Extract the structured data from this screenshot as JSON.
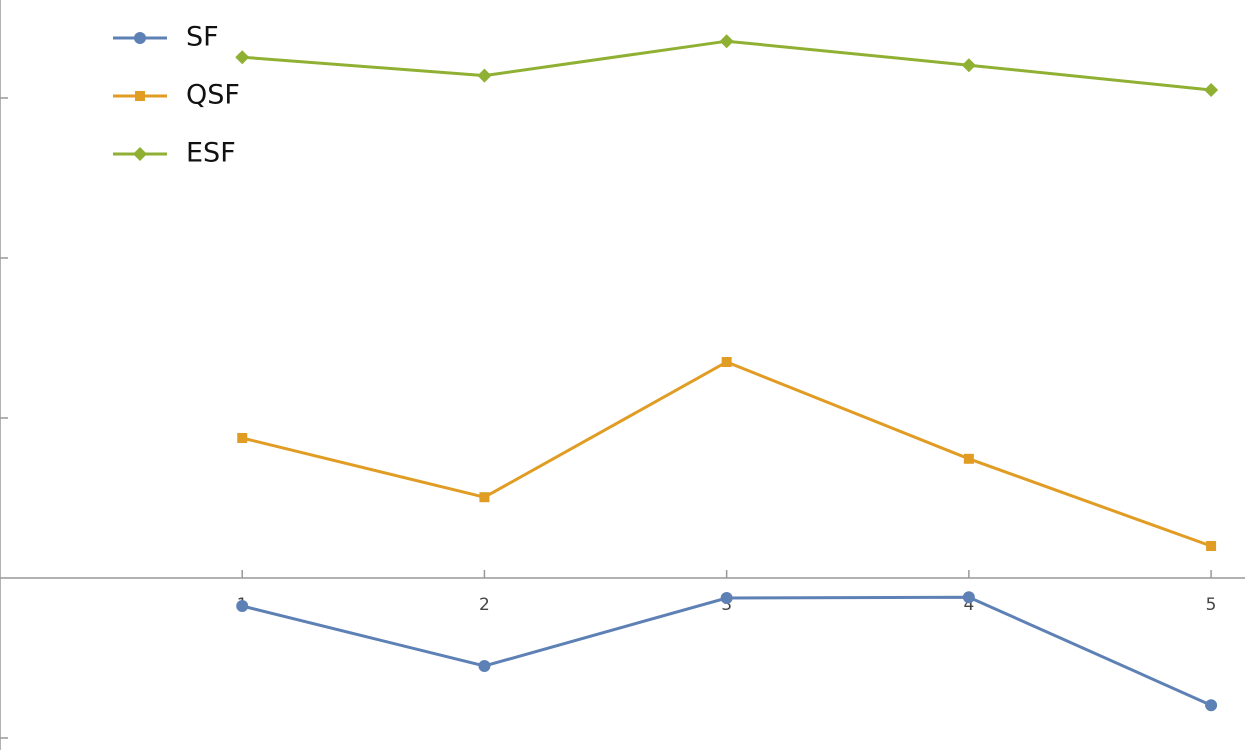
{
  "chart_data": {
    "type": "line",
    "x": [
      1,
      2,
      3,
      4,
      5
    ],
    "series": [
      {
        "name": "SF",
        "color": "#5e81b5",
        "marker": "circle",
        "values": [
          -0.035,
          -0.11,
          -0.025,
          -0.024,
          -0.159
        ]
      },
      {
        "name": "QSF",
        "color": "#e19c24",
        "marker": "square",
        "values": [
          0.175,
          0.101,
          0.27,
          0.149,
          0.04
        ]
      },
      {
        "name": "ESF",
        "color": "#8fb032",
        "marker": "diamond",
        "values": [
          0.651,
          0.628,
          0.671,
          0.641,
          0.61
        ]
      }
    ],
    "xlim": [
      0,
      5.14
    ],
    "ylim": [
      -0.215,
      0.7225
    ],
    "xticks": [
      1,
      2,
      3,
      4,
      5
    ],
    "yticks": [
      -0.2,
      0.2,
      0.4,
      0.6
    ],
    "legend": "upper left"
  }
}
